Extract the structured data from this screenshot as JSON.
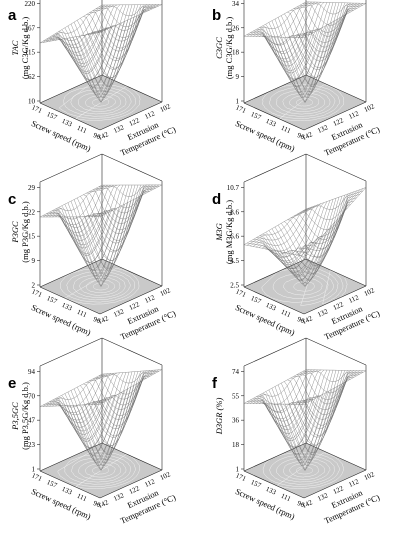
{
  "chart_data": [
    {
      "type": "surface3d",
      "panel": "a",
      "zlabel_line1": "TAC",
      "zlabel_line2": "(mg C3G/Kg d.b.)",
      "ylabel": "Screw speed (rpm)",
      "xlabel_line1": "Extrusion",
      "xlabel_line2": "Temperature (°C)",
      "screw_ticks": [
        "171",
        "157",
        "133",
        "111",
        "96"
      ],
      "temp_ticks": [
        "142",
        "132",
        "122",
        "112",
        "102"
      ],
      "z_ticks": [
        "220",
        "167",
        "115",
        "62",
        "10"
      ],
      "zlim": [
        10,
        220
      ],
      "corner_values": {
        "t102_s96": 205,
        "t102_s171": 150,
        "t142_s171": 130,
        "t142_s96": 205
      },
      "center_value": 10
    },
    {
      "type": "surface3d",
      "panel": "b",
      "zlabel_line1": "C3GC",
      "zlabel_line2": "(mg C3G/Kg d.b.)",
      "ylabel": "Screw speed (rpm)",
      "xlabel_line1": "Extrusion",
      "xlabel_line2": "Temperature (°C)",
      "screw_ticks": [
        "171",
        "157",
        "133",
        "111",
        "96"
      ],
      "temp_ticks": [
        "142",
        "132",
        "122",
        "112",
        "102"
      ],
      "z_ticks": [
        "34",
        "26",
        "18",
        "9",
        "1"
      ],
      "zlim": [
        1,
        34
      ],
      "corner_values": {
        "t102_s96": 32,
        "t102_s171": 24,
        "t142_s171": 22,
        "t142_s96": 30
      },
      "center_value": 1
    },
    {
      "type": "surface3d",
      "panel": "c",
      "zlabel_line1": "P3GC",
      "zlabel_line2": "(mg P3G/Kg d.b.)",
      "ylabel": "Screw speed (rpm)",
      "xlabel_line1": "Extrusion",
      "xlabel_line2": "Temperature (°C)",
      "screw_ticks": [
        "171",
        "157",
        "133",
        "111",
        "96"
      ],
      "temp_ticks": [
        "142",
        "132",
        "122",
        "112",
        "102"
      ],
      "z_ticks": [
        "29",
        "22",
        "15",
        "9",
        "2"
      ],
      "zlim": [
        2,
        29
      ],
      "corner_values": {
        "t102_s96": 28,
        "t102_s171": 21,
        "t142_s171": 20,
        "t142_s96": 27
      },
      "center_value": 2
    },
    {
      "type": "surface3d",
      "panel": "d",
      "zlabel_line1": "M3G",
      "zlabel_line2": "(mg M3G/Kg d.b.)",
      "ylabel": "Screw speed (rpm)",
      "xlabel_line1": "Extrusion",
      "xlabel_line2": "Temperature (°C)",
      "screw_ticks": [
        "171",
        "157",
        "133",
        "111",
        "96"
      ],
      "temp_ticks": [
        "142",
        "132",
        "122",
        "112",
        "102"
      ],
      "z_ticks": [
        "10.7",
        "8.6",
        "6.6",
        "4.5",
        "2.5"
      ],
      "zlim": [
        2.5,
        10.7
      ],
      "corner_values": {
        "t102_s96": 10.2,
        "t102_s171": 6.4,
        "t142_s171": 5.8,
        "t142_s96": 7.0
      },
      "center_value": 2.5
    },
    {
      "type": "surface3d",
      "panel": "e",
      "zlabel_line1": "P3,5GC",
      "zlabel_line2": "(mg P3,5G/Kg d.b.)",
      "ylabel": "Screw speed (rpm)",
      "xlabel_line1": "Extrusion",
      "xlabel_line2": "Temperature (°C)",
      "screw_ticks": [
        "171",
        "157",
        "133",
        "111",
        "96"
      ],
      "temp_ticks": [
        "142",
        "132",
        "122",
        "112",
        "102"
      ],
      "z_ticks": [
        "94",
        "70",
        "47",
        "23",
        "1"
      ],
      "zlim": [
        1,
        94
      ],
      "corner_values": {
        "t102_s96": 90,
        "t102_s171": 62,
        "t142_s171": 58,
        "t142_s96": 84
      },
      "center_value": 1
    },
    {
      "type": "surface3d",
      "panel": "f",
      "zlabel_line1": "D3GR (%)",
      "zlabel_line2": "",
      "ylabel": "Screw speed (rpm)",
      "xlabel_line1": "Extrusion",
      "xlabel_line2": "Temperature (°C)",
      "screw_ticks": [
        "171",
        "157",
        "133",
        "111",
        "96"
      ],
      "temp_ticks": [
        "142",
        "132",
        "122",
        "112",
        "102"
      ],
      "z_ticks": [
        "74",
        "55",
        "36",
        "18",
        "1"
      ],
      "zlim": [
        1,
        74
      ],
      "corner_values": {
        "t102_s96": 70,
        "t102_s171": 52,
        "t142_s171": 48,
        "t142_s96": 66
      },
      "center_value": 1
    }
  ]
}
